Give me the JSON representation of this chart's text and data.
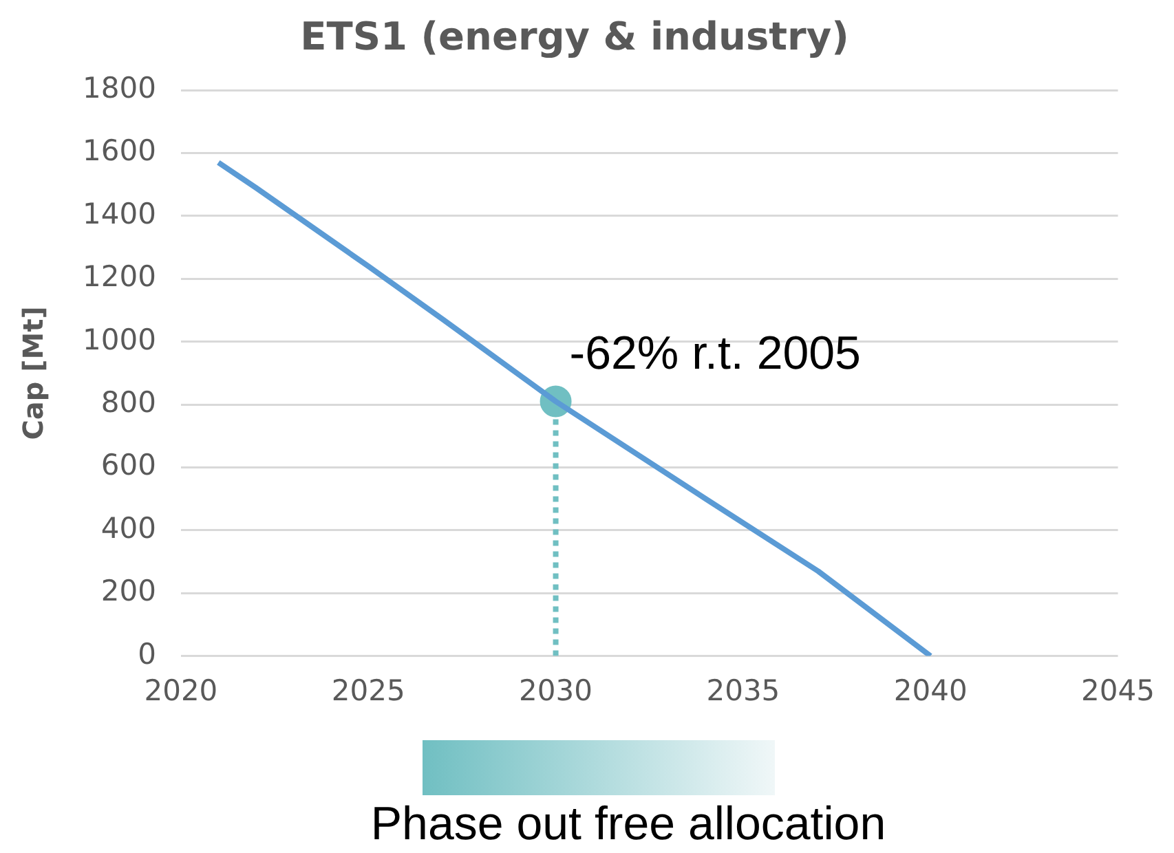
{
  "chart_data": {
    "type": "line",
    "title": "ETS1 (energy & industry)",
    "ylabel": "Cap [Mt]",
    "xlim": [
      2020,
      2045
    ],
    "xticks": [
      2020,
      2025,
      2030,
      2035,
      2040,
      2045
    ],
    "ylim": [
      0,
      1800
    ],
    "yticks": [
      0,
      200,
      400,
      600,
      800,
      1000,
      1200,
      1400,
      1600,
      1800
    ],
    "grid": "y",
    "series": [
      {
        "type": "line",
        "color": "#5b9bd5",
        "x": [
          2021,
          2022,
          2025,
          2027,
          2030,
          2034,
          2037,
          2040
        ],
        "values": [
          1570,
          1490,
          1240,
          1070,
          810,
          500,
          270,
          0
        ]
      },
      {
        "type": "line",
        "color": "#70bfc2",
        "line_style": "dotted",
        "x": [
          2030,
          2030
        ],
        "values": [
          0,
          810
        ]
      },
      {
        "type": "scatter",
        "color": "#70bfc2",
        "marker": "circle",
        "x": [
          2030
        ],
        "values": [
          810
        ]
      }
    ],
    "annotations": [
      {
        "text": "-62% r.t. 2005",
        "x": 2030,
        "y": 810
      },
      "Phase out free allocation"
    ]
  }
}
